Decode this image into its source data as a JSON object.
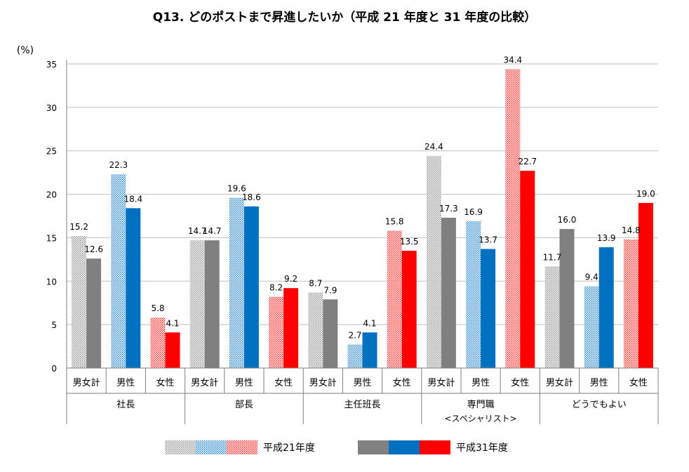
{
  "chart_data": {
    "type": "bar",
    "title": "Q13. どのポストまで昇進したいか（平成 21 年度と 31 年度の比較）",
    "ylabel": "(%)",
    "ylim": [
      0,
      35
    ],
    "yticks": [
      0,
      5,
      10,
      15,
      20,
      25,
      30,
      35
    ],
    "grid": true,
    "legend_position": "bottom",
    "groups": [
      {
        "label": "社長",
        "label_line2": "",
        "subcategories": [
          "男女計",
          "男性",
          "女性"
        ],
        "h21": [
          15.2,
          22.3,
          5.8
        ],
        "h31": [
          12.6,
          18.4,
          4.1
        ]
      },
      {
        "label": "部長",
        "label_line2": "",
        "subcategories": [
          "男女計",
          "男性",
          "女性"
        ],
        "h21": [
          14.7,
          19.6,
          8.2
        ],
        "h31": [
          14.7,
          18.6,
          9.2
        ]
      },
      {
        "label": "主任班長",
        "label_line2": "",
        "subcategories": [
          "男女計",
          "男性",
          "女性"
        ],
        "h21": [
          8.7,
          2.7,
          15.8
        ],
        "h31": [
          7.9,
          4.1,
          13.5
        ]
      },
      {
        "label": "専門職",
        "label_line2": "<スペシャリスト>",
        "subcategories": [
          "男女計",
          "男性",
          "女性"
        ],
        "h21": [
          24.4,
          16.9,
          34.4
        ],
        "h31": [
          17.3,
          13.7,
          22.7
        ]
      },
      {
        "label": "どうでもよい",
        "label_line2": "",
        "subcategories": [
          "男女計",
          "男性",
          "女性"
        ],
        "h21": [
          11.7,
          9.4,
          14.8
        ],
        "h31": [
          16.0,
          13.9,
          19.0
        ]
      }
    ],
    "series": [
      {
        "name": "平成21年度",
        "key": "h21",
        "style": "dotted-pattern"
      },
      {
        "name": "平成31年度",
        "key": "h31",
        "style": "solid"
      }
    ],
    "colors": {
      "total": "#808080",
      "male": "#0070c0",
      "female": "#ff0000",
      "grid": "#bfbfbf",
      "axis": "#7f7f7f"
    }
  }
}
